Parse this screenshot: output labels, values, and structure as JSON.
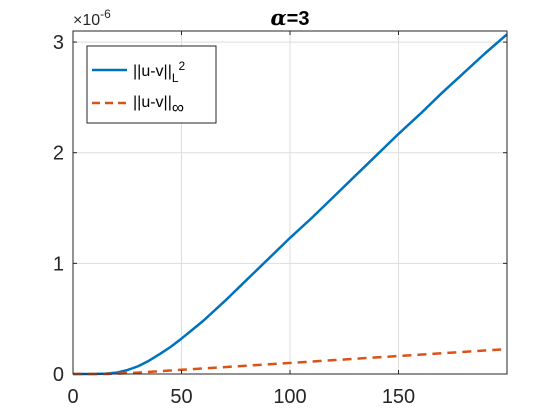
{
  "chart_data": {
    "type": "line",
    "title_symbol": "α",
    "title_rest": "=3",
    "xlabel": "",
    "ylabel": "",
    "xlim": [
      0,
      200
    ],
    "ylim": [
      0,
      3.1
    ],
    "y_multiplier": "×10",
    "y_exponent": "-6",
    "grid": true,
    "legend_position": "top-left",
    "x_ticks": [
      0,
      50,
      100,
      150
    ],
    "x_tick_labels": [
      "0",
      "50",
      "100",
      "150"
    ],
    "y_ticks": [
      0,
      1,
      2,
      3
    ],
    "y_tick_labels": [
      "0",
      "1",
      "2",
      "3"
    ],
    "series": [
      {
        "legend_main": "||u-v||",
        "legend_sub": "L",
        "legend_sup": "2",
        "color": "#0072BD",
        "dash": "solid",
        "x": [
          0,
          10,
          15,
          20,
          25,
          30,
          35,
          40,
          45,
          50,
          55,
          60,
          70,
          80,
          90,
          100,
          110,
          120,
          130,
          140,
          150,
          160,
          170,
          180,
          190,
          200
        ],
        "y": [
          0,
          0,
          0.003,
          0.012,
          0.035,
          0.07,
          0.12,
          0.18,
          0.245,
          0.32,
          0.4,
          0.48,
          0.66,
          0.85,
          1.04,
          1.23,
          1.41,
          1.6,
          1.79,
          1.98,
          2.17,
          2.35,
          2.54,
          2.72,
          2.9,
          3.07
        ]
      },
      {
        "legend_main": "||u-v||",
        "legend_sub": "∞",
        "legend_sup": "",
        "color": "#D95319",
        "dash": "dashed",
        "x": [
          0,
          15,
          20,
          30,
          40,
          50,
          60,
          80,
          100,
          120,
          140,
          160,
          180,
          200
        ],
        "y": [
          0,
          0,
          0.003,
          0.012,
          0.025,
          0.038,
          0.05,
          0.075,
          0.1,
          0.125,
          0.15,
          0.175,
          0.2,
          0.225
        ]
      }
    ]
  }
}
